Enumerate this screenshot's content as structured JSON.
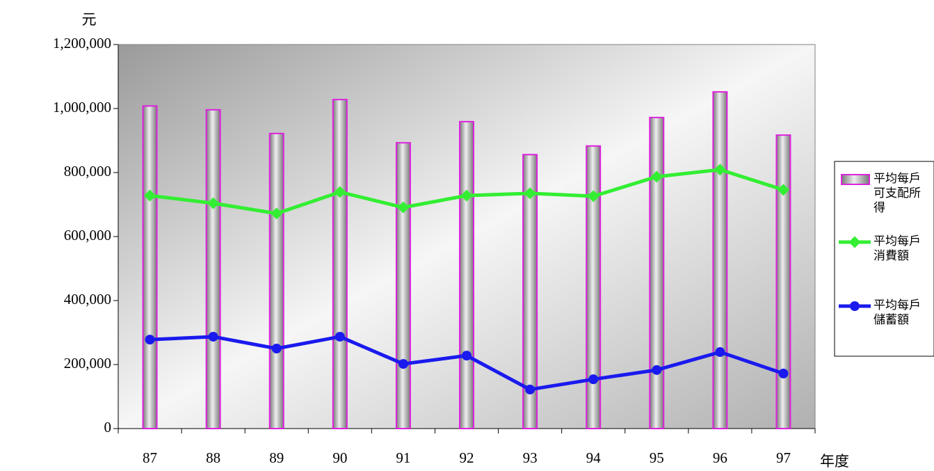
{
  "chart_data": {
    "type": "bar",
    "y_label": "元",
    "x_label": "年度",
    "categories": [
      "87",
      "88",
      "89",
      "90",
      "91",
      "92",
      "93",
      "94",
      "95",
      "96",
      "97"
    ],
    "series": [
      {
        "name": "平均每戶可支配所得",
        "type": "bar",
        "color": "#dd22dd",
        "values": [
          1008000,
          996000,
          922000,
          1028000,
          893000,
          959000,
          856000,
          883000,
          972000,
          1052000,
          917000
        ]
      },
      {
        "name": "平均每戶消費額",
        "type": "line",
        "color": "#33ee33",
        "values": [
          728000,
          704000,
          672000,
          739000,
          691000,
          728000,
          735000,
          726000,
          787000,
          809000,
          746000
        ]
      },
      {
        "name": "平均每戶儲蓄額",
        "type": "line",
        "color": "#1a1aee",
        "values": [
          278000,
          287000,
          250000,
          287000,
          202000,
          228000,
          122000,
          154000,
          183000,
          239000,
          172000
        ]
      }
    ],
    "ylim": [
      0,
      1200000
    ],
    "yticks": [
      0,
      {
        "value": 200000,
        "label": "200,000"
      },
      {
        "value": 400000,
        "label": "400,000"
      },
      {
        "value": 600000,
        "label": "600,000"
      },
      {
        "value": 800000,
        "label": "800,000"
      },
      {
        "value": 1000000,
        "label": "1,000,000"
      },
      {
        "value": 1200000,
        "label": "1,200,000"
      }
    ],
    "legend": "right"
  }
}
